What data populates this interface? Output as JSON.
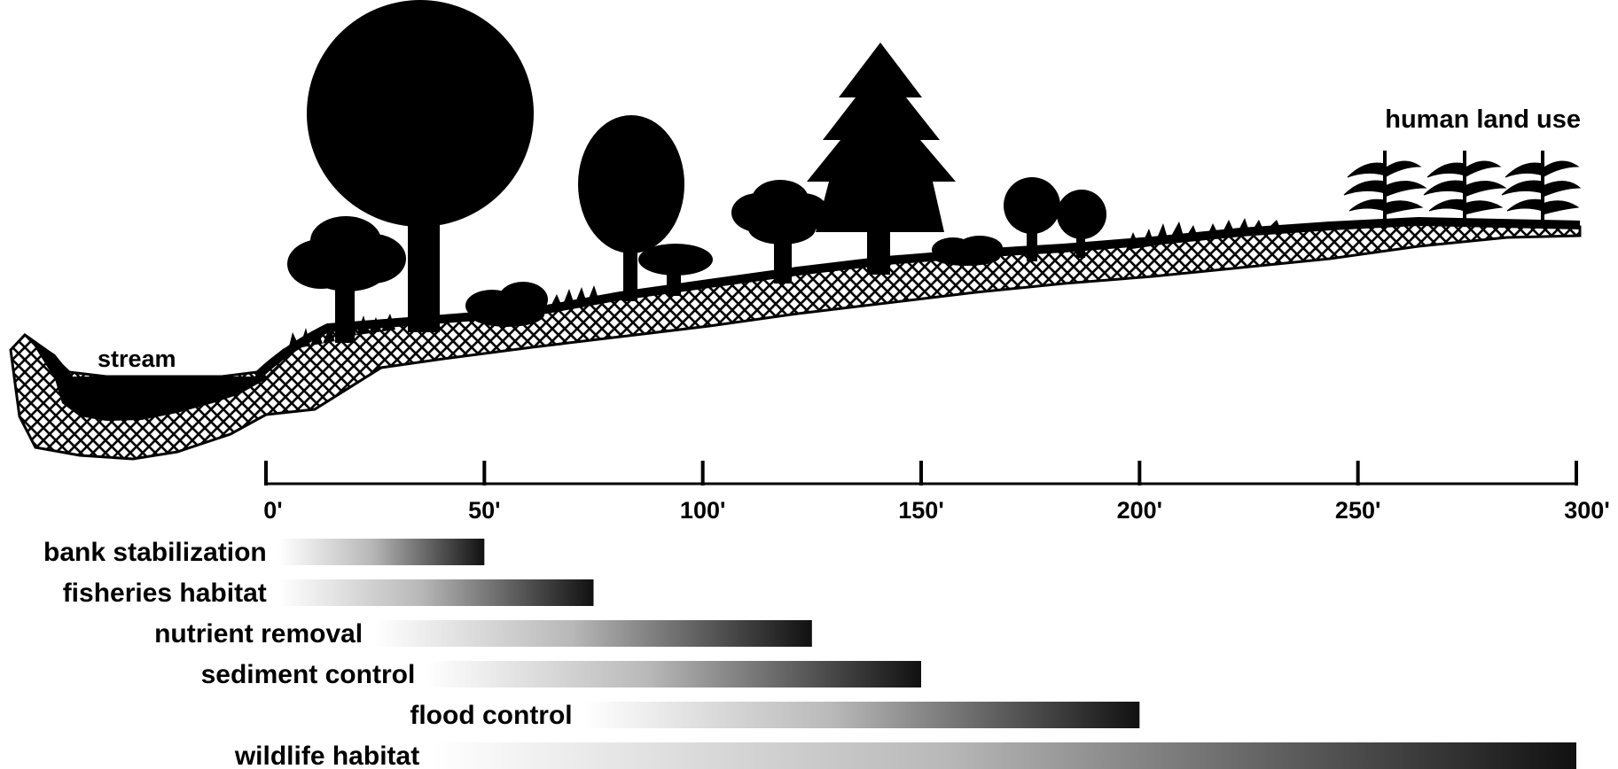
{
  "labels": {
    "stream": "stream",
    "human_land_use": "human land use"
  },
  "axis": {
    "ticks": [
      "0'",
      "50'",
      "100'",
      "150'",
      "200'",
      "250'",
      "300'"
    ],
    "min": 0,
    "max": 300
  },
  "functions": [
    {
      "label": "bank stabilization",
      "from": 3,
      "to": 50
    },
    {
      "label": "fisheries habitat",
      "from": 3,
      "to": 75
    },
    {
      "label": "nutrient removal",
      "from": 25,
      "to": 125
    },
    {
      "label": "sediment control",
      "from": 37,
      "to": 150
    },
    {
      "label": "flood control",
      "from": 73,
      "to": 200
    },
    {
      "label": "wildlife habitat",
      "from": 38,
      "to": 300
    }
  ],
  "colors": {
    "ink": "#000000",
    "gradient_start": "#ffffff",
    "gradient_end": "#111111"
  }
}
